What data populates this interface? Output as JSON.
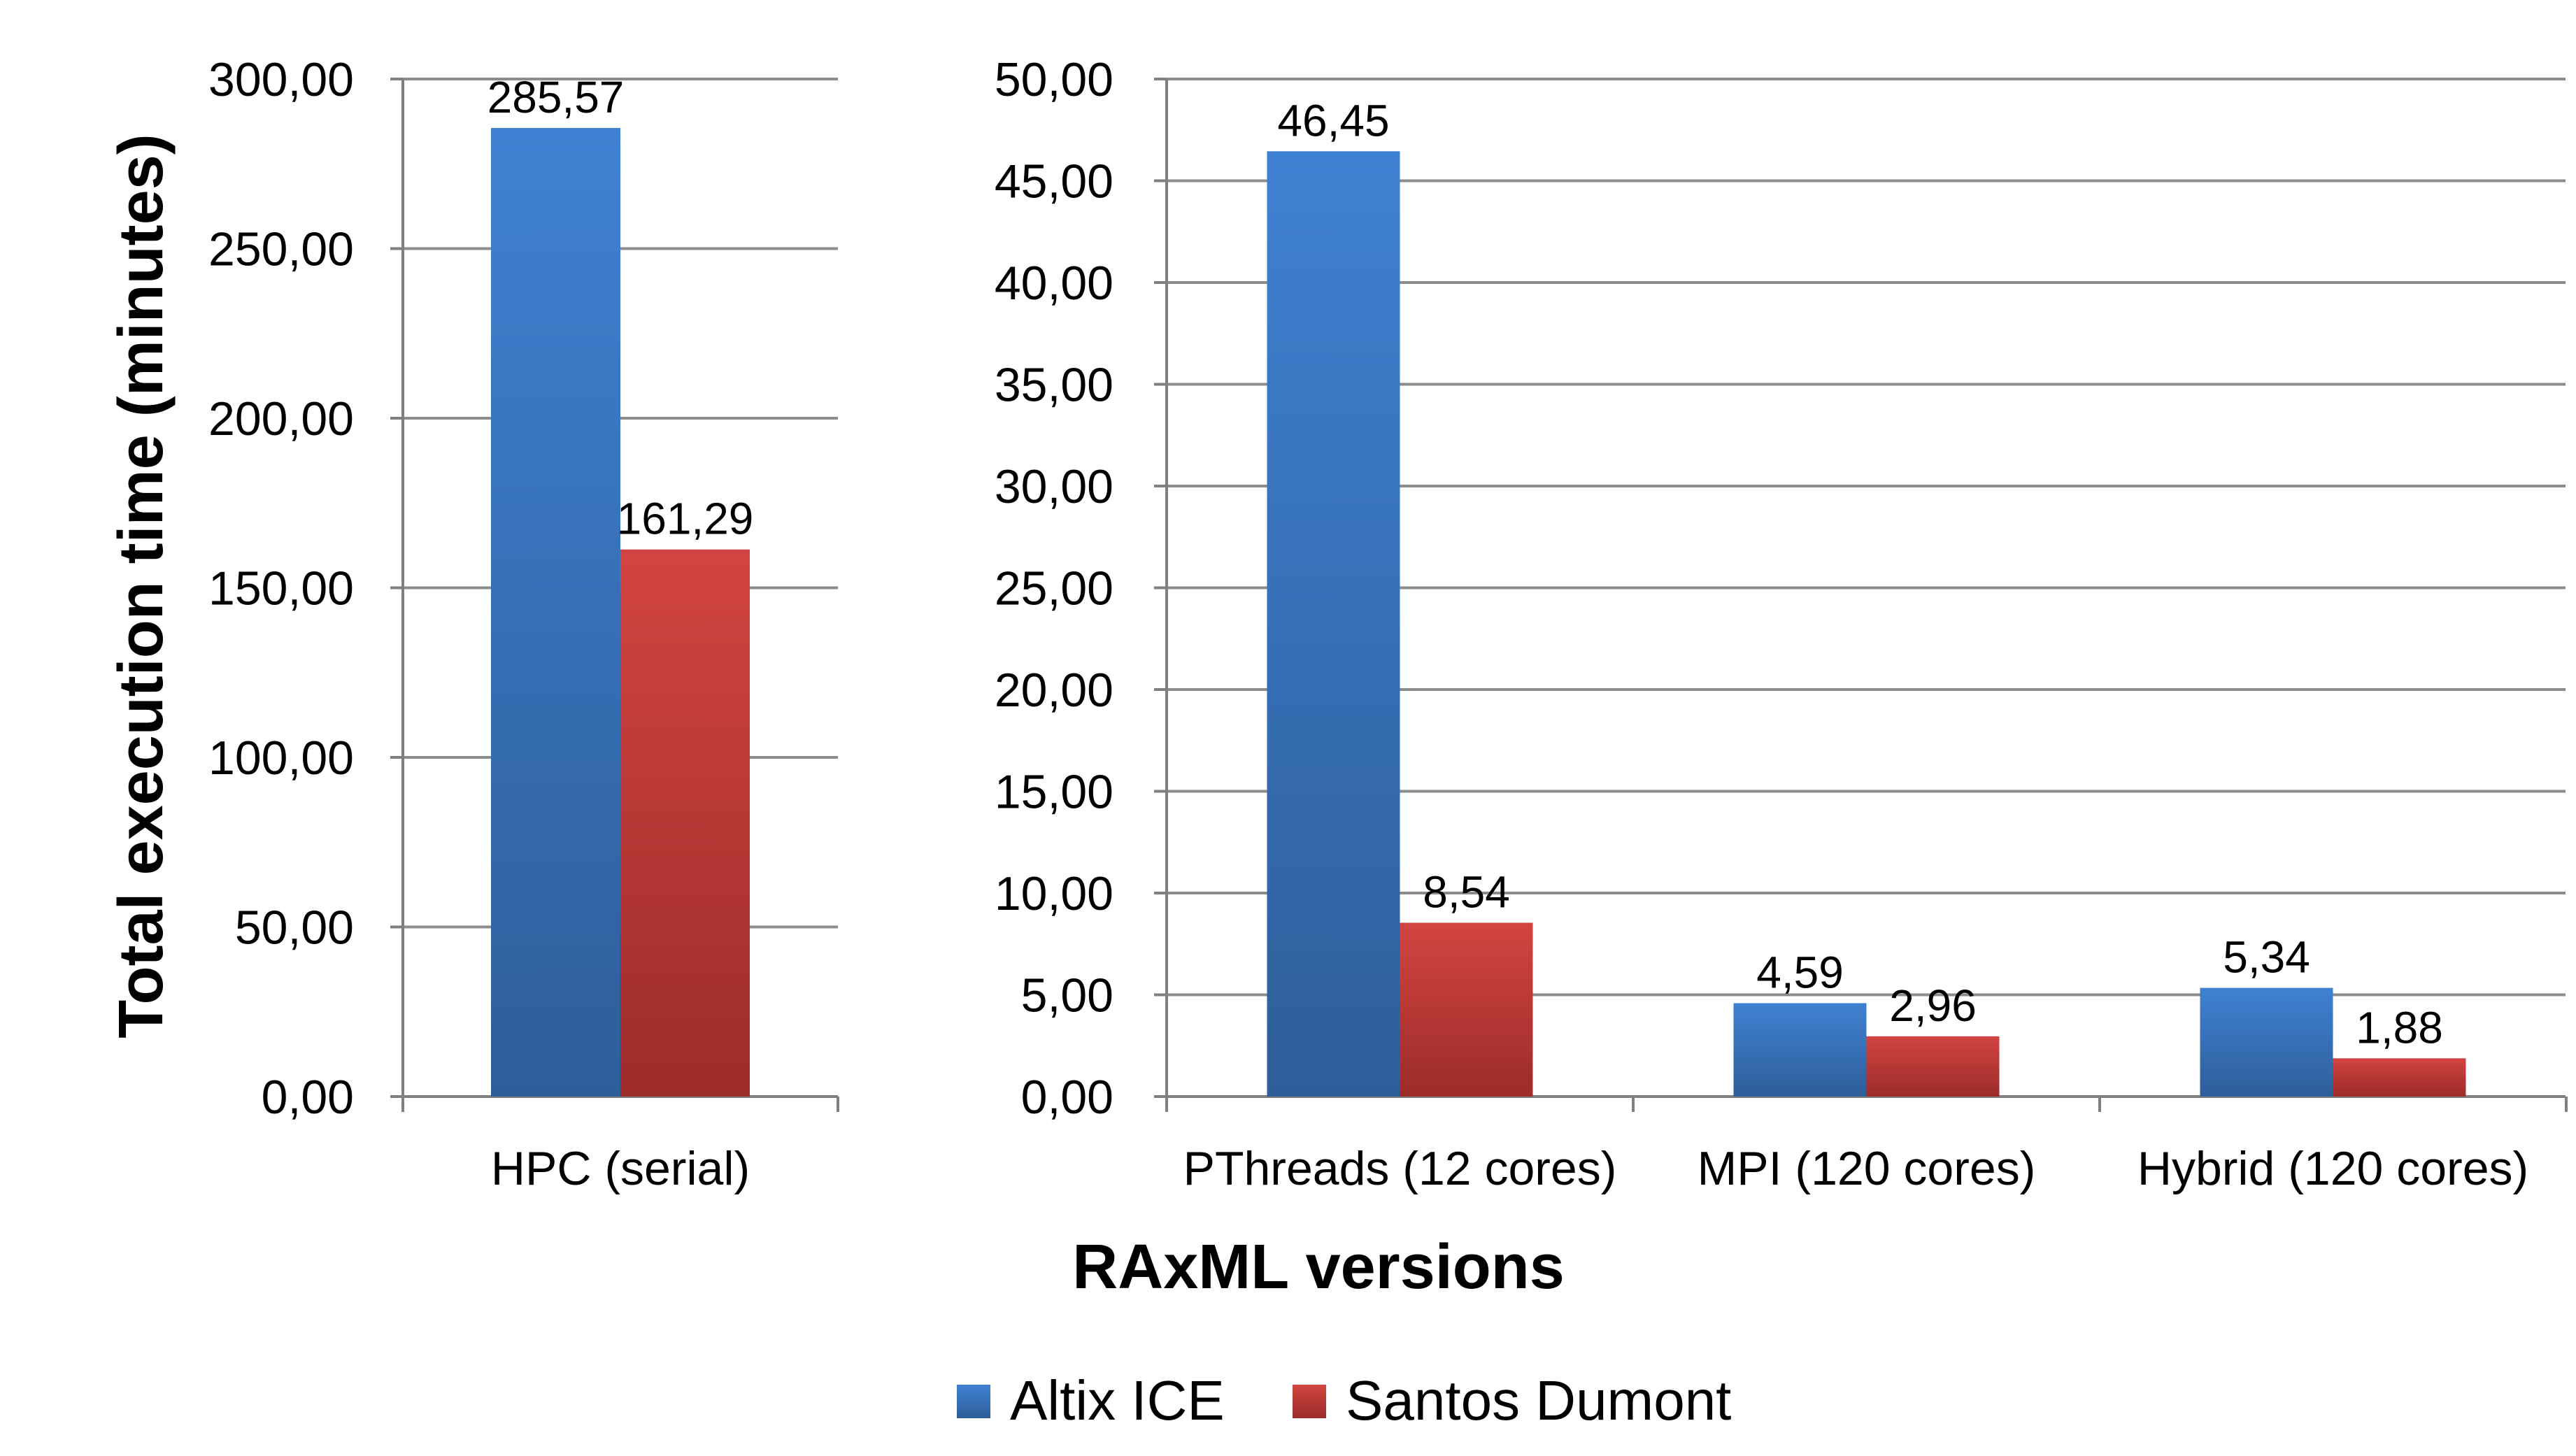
{
  "chart_data": [
    {
      "type": "bar",
      "categories": [
        "HPC (serial)"
      ],
      "series": [
        {
          "name": "Altix ICE",
          "values": [
            285.57
          ],
          "labels": [
            "285,57"
          ]
        },
        {
          "name": "Santos Dumont",
          "values": [
            161.29
          ],
          "labels": [
            "161,29"
          ]
        }
      ],
      "ylim": [
        0,
        300
      ],
      "yticks": [
        "0,00",
        "50,00",
        "100,00",
        "150,00",
        "200,00",
        "250,00",
        "300,00"
      ],
      "ylabel": "Total execution time (minutes)",
      "grid": true
    },
    {
      "type": "bar",
      "categories": [
        "PThreads (12 cores)",
        "MPI (120 cores)",
        "Hybrid (120 cores)"
      ],
      "series": [
        {
          "name": "Altix ICE",
          "values": [
            46.45,
            4.59,
            5.34
          ],
          "labels": [
            "46,45",
            "4,59",
            "5,34"
          ]
        },
        {
          "name": "Santos Dumont",
          "values": [
            8.54,
            2.96,
            1.88
          ],
          "labels": [
            "8,54",
            "2,96",
            "1,88"
          ]
        }
      ],
      "ylim": [
        0,
        50
      ],
      "yticks": [
        "0,00",
        "5,00",
        "10,00",
        "15,00",
        "20,00",
        "25,00",
        "30,00",
        "35,00",
        "40,00",
        "45,00",
        "50,00"
      ],
      "grid": true
    }
  ],
  "xlabel": "RAxML versions",
  "legend": {
    "position": "bottom",
    "entries": [
      {
        "name": "Altix ICE",
        "color": "#3A78C6"
      },
      {
        "name": "Santos Dumont",
        "color": "#C43C39"
      }
    ]
  },
  "colors": {
    "altix_light": "#3F81D2",
    "altix_dark": "#2E5E9A",
    "santos_light": "#D24441",
    "santos_dark": "#9C2C2A",
    "grid": "#8C8C8C",
    "axis": "#808080"
  }
}
